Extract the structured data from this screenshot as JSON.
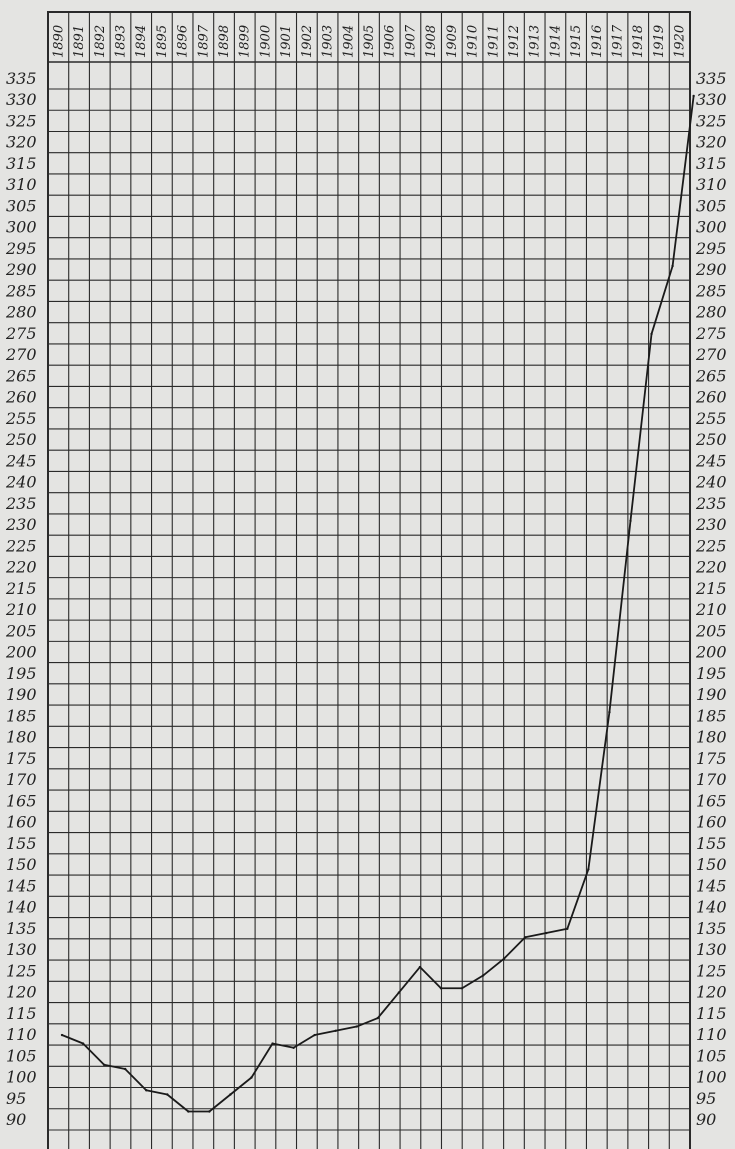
{
  "chart_data": {
    "type": "line",
    "title": "",
    "xlabel": "",
    "ylabel": "",
    "grid": true,
    "legend": "none",
    "x_tick_labels": [
      "1890",
      "1891",
      "1892",
      "1893",
      "1894",
      "1895",
      "1896",
      "1897",
      "1898",
      "1899",
      "1900",
      "1901",
      "1902",
      "1903",
      "1904",
      "1905",
      "1906",
      "1907",
      "1908",
      "1909",
      "1910",
      "1911",
      "1912",
      "1913",
      "1914",
      "1915",
      "1916",
      "1917",
      "1918",
      "1919",
      "1920"
    ],
    "y_ticks_left": [
      335,
      330,
      325,
      320,
      315,
      310,
      305,
      300,
      295,
      290,
      285,
      280,
      275,
      270,
      265,
      260,
      255,
      250,
      245,
      240,
      235,
      230,
      225,
      220,
      215,
      210,
      205,
      200,
      195,
      190,
      185,
      180,
      175,
      170,
      165,
      160,
      155,
      150,
      145,
      140,
      135,
      130,
      125,
      120,
      115,
      110,
      105,
      100,
      95,
      90
    ],
    "y_ticks_right": [
      335,
      330,
      325,
      320,
      315,
      310,
      305,
      300,
      295,
      290,
      285,
      280,
      275,
      270,
      265,
      260,
      255,
      250,
      245,
      240,
      235,
      230,
      225,
      220,
      215,
      210,
      205,
      200,
      195,
      190,
      185,
      180,
      175,
      170,
      165,
      160,
      155,
      150,
      145,
      140,
      135,
      130,
      125,
      120,
      115,
      110,
      105,
      100,
      95,
      90
    ],
    "ylim": [
      87,
      336
    ],
    "x": [
      1890,
      1891,
      1892,
      1893,
      1894,
      1895,
      1896,
      1897,
      1898,
      1899,
      1900,
      1901,
      1902,
      1903,
      1904,
      1905,
      1906,
      1907,
      1908,
      1909,
      1910,
      1911,
      1912,
      1913,
      1914,
      1915,
      1916,
      1917,
      1918,
      1919,
      1920
    ],
    "series": [
      {
        "values": [
          110,
          108,
          103,
          102,
          97,
          96,
          92,
          92,
          96,
          100,
          108,
          107,
          110,
          111,
          112,
          114,
          120,
          126,
          121,
          121,
          124,
          128,
          133,
          134,
          135,
          149,
          186,
          231,
          275,
          291,
          331
        ]
      }
    ],
    "colors": {
      "line": "#1a1a1a",
      "grid": "#2a2a2a",
      "background": "#e4e4e2"
    }
  }
}
